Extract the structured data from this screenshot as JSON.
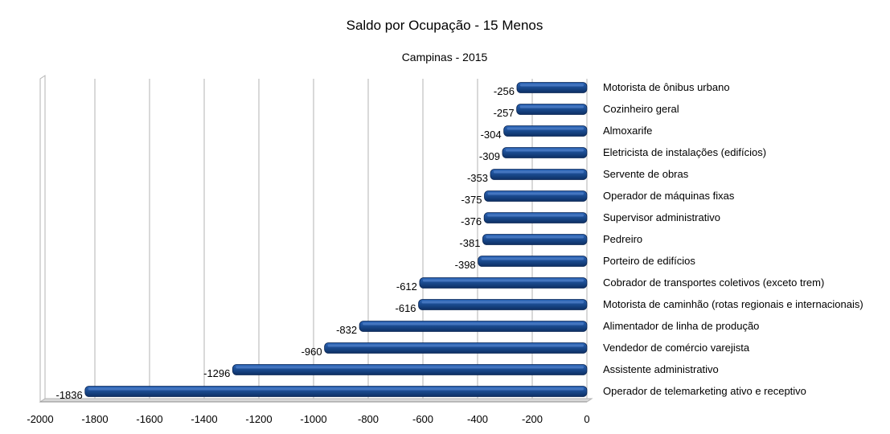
{
  "chart_data": {
    "type": "bar",
    "orientation": "horizontal",
    "title": "Saldo por Ocupação - 15 Menos",
    "subtitle": "Campinas - 2015",
    "xlabel": "",
    "ylabel": "",
    "xlim": [
      -2000,
      0
    ],
    "x_ticks": [
      -2000,
      -1800,
      -1600,
      -1400,
      -1200,
      -1000,
      -800,
      -600,
      -400,
      -200,
      0
    ],
    "grid": true,
    "bar_color": "#1a4a8e",
    "categories": [
      "Motorista de ônibus urbano",
      "Cozinheiro geral",
      "Almoxarife",
      "Eletricista de instalações (edifícios)",
      "Servente de obras",
      "Operador de máquinas fixas",
      "Supervisor administrativo",
      "Pedreiro",
      "Porteiro de edifícios",
      "Cobrador de transportes coletivos (exceto trem)",
      "Motorista de caminhão (rotas regionais e internacionais)",
      "Alimentador de linha de produção",
      "Vendedor de comércio varejista",
      "Assistente administrativo",
      "Operador de telemarketing ativo e receptivo"
    ],
    "values": [
      -256,
      -257,
      -304,
      -309,
      -353,
      -375,
      -376,
      -381,
      -398,
      -612,
      -616,
      -832,
      -960,
      -1296,
      -1836
    ]
  }
}
